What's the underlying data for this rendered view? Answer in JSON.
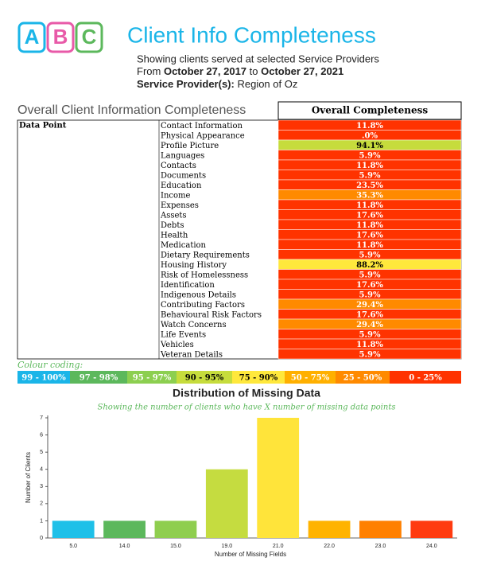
{
  "header": {
    "logo": [
      "A",
      "B",
      "C"
    ],
    "title": "Client Info Completeness",
    "subtitle": "Showing clients served at selected Service Providers",
    "date_prefix": "From",
    "start_date": "October 27, 2017",
    "date_joiner": "to",
    "end_date": "October 27, 2021",
    "provider_label": "Service Provider(s):",
    "provider": "Region of Oz"
  },
  "table": {
    "section_title": "Overall Client Information Completeness",
    "column_header": "Overall Completeness",
    "first_column_header": "Data Point",
    "rows": [
      {
        "label": "Contact Information",
        "value": "11.8%",
        "color": "#ff3300"
      },
      {
        "label": "Physical Appearance",
        "value": ".0%",
        "color": "#ff3300"
      },
      {
        "label": "Profile Picture",
        "value": "94.1%",
        "color": "#c6dc3c"
      },
      {
        "label": "Languages",
        "value": "5.9%",
        "color": "#ff3300"
      },
      {
        "label": "Contacts",
        "value": "11.8%",
        "color": "#ff3300"
      },
      {
        "label": "Documents",
        "value": "5.9%",
        "color": "#ff3300"
      },
      {
        "label": "Education",
        "value": "23.5%",
        "color": "#ff3300"
      },
      {
        "label": "Income",
        "value": "35.3%",
        "color": "#ff8a00"
      },
      {
        "label": "Expenses",
        "value": "11.8%",
        "color": "#ff3300"
      },
      {
        "label": "Assets",
        "value": "17.6%",
        "color": "#ff3300"
      },
      {
        "label": "Debts",
        "value": "11.8%",
        "color": "#ff3300"
      },
      {
        "label": "Health",
        "value": "17.6%",
        "color": "#ff3300"
      },
      {
        "label": "Medication",
        "value": "11.8%",
        "color": "#ff3300"
      },
      {
        "label": "Dietary Requirements",
        "value": "5.9%",
        "color": "#ff3300"
      },
      {
        "label": "Housing History",
        "value": "88.2%",
        "color": "#ffe83c"
      },
      {
        "label": "Risk of Homelessness",
        "value": "5.9%",
        "color": "#ff3300"
      },
      {
        "label": "Identification",
        "value": "17.6%",
        "color": "#ff3300"
      },
      {
        "label": "Indigenous Details",
        "value": "5.9%",
        "color": "#ff3300"
      },
      {
        "label": "Contributing Factors",
        "value": "29.4%",
        "color": "#ff8a00"
      },
      {
        "label": "Behavioural Risk Factors",
        "value": "17.6%",
        "color": "#ff3300"
      },
      {
        "label": "Watch Concerns",
        "value": "29.4%",
        "color": "#ff8a00"
      },
      {
        "label": "Life Events",
        "value": "5.9%",
        "color": "#ff3300"
      },
      {
        "label": "Vehicles",
        "value": "11.8%",
        "color": "#ff3300"
      },
      {
        "label": "Veteran Details",
        "value": "5.9%",
        "color": "#ff3300"
      }
    ]
  },
  "colour_coding": {
    "title": "Colour coding:",
    "items": [
      {
        "label": "99 - 100%",
        "color": "#1ab5e8"
      },
      {
        "label": "97 - 98%",
        "color": "#5cb85c"
      },
      {
        "label": "95 - 97%",
        "color": "#8ccf50"
      },
      {
        "label": "90 - 95%",
        "color": "#c6dc3c"
      },
      {
        "label": "75 - 90%",
        "color": "#ffe83c"
      },
      {
        "label": "50 - 75%",
        "color": "#ffb000"
      },
      {
        "label": "25 - 50%",
        "color": "#ff8a00"
      },
      {
        "label": "0 - 25%",
        "color": "#ff3300"
      }
    ]
  },
  "chart_data": {
    "type": "bar",
    "title": "Distribution of Missing Data",
    "subtitle": "Showing the number of clients who have X number of missing data points",
    "x_label": "Number of Missing Fields",
    "y_label": "Number of Clients",
    "categories": [
      "5.0",
      "14.0",
      "15.0",
      "19.0",
      "21.0",
      "22.0",
      "23.0",
      "24.0"
    ],
    "values": [
      1,
      1,
      1,
      4,
      7,
      1,
      1,
      1
    ],
    "colors": [
      "#1ec0e8",
      "#5cb85c",
      "#8fce4f",
      "#c5dc40",
      "#ffe43a",
      "#ffb300",
      "#ff8000",
      "#ff3b10"
    ],
    "ylim": [
      0,
      7
    ],
    "yticks": [
      0,
      1,
      2,
      3,
      4,
      5,
      6,
      7
    ]
  }
}
